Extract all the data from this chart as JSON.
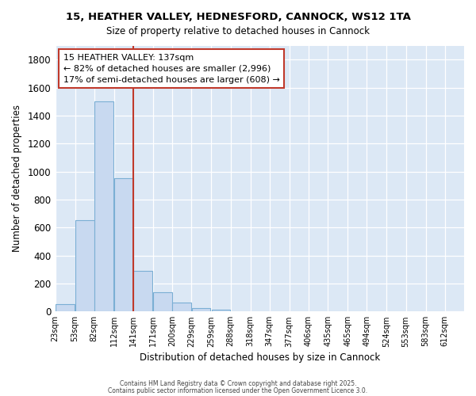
{
  "title_line1": "15, HEATHER VALLEY, HEDNESFORD, CANNOCK, WS12 1TA",
  "title_line2": "Size of property relative to detached houses in Cannock",
  "xlabel": "Distribution of detached houses by size in Cannock",
  "ylabel": "Number of detached properties",
  "bar_left_edges": [
    23,
    53,
    82,
    112,
    141,
    171,
    200,
    229,
    259,
    288,
    318,
    347,
    377,
    406,
    435,
    465,
    494,
    524,
    553,
    583
  ],
  "bar_widths": [
    29,
    29,
    29,
    29,
    29,
    29,
    29,
    29,
    29,
    29,
    29,
    29,
    29,
    29,
    29,
    29,
    29,
    29,
    29,
    29
  ],
  "bar_heights": [
    50,
    650,
    1500,
    950,
    290,
    135,
    65,
    25,
    15,
    0,
    0,
    0,
    0,
    0,
    0,
    0,
    0,
    0,
    0,
    0
  ],
  "bar_color": "#c8d9f0",
  "bar_edge_color": "#7bafd4",
  "tick_labels": [
    "23sqm",
    "53sqm",
    "82sqm",
    "112sqm",
    "141sqm",
    "171sqm",
    "200sqm",
    "229sqm",
    "259sqm",
    "288sqm",
    "318sqm",
    "347sqm",
    "377sqm",
    "406sqm",
    "435sqm",
    "465sqm",
    "494sqm",
    "524sqm",
    "553sqm",
    "583sqm",
    "612sqm"
  ],
  "tick_positions": [
    23,
    53,
    82,
    112,
    141,
    171,
    200,
    229,
    259,
    288,
    318,
    347,
    377,
    406,
    435,
    465,
    494,
    524,
    553,
    583,
    612
  ],
  "vline_x": 141,
  "vline_color": "#c0392b",
  "annotation_text": "15 HEATHER VALLEY: 137sqm\n← 82% of detached houses are smaller (2,996)\n17% of semi-detached houses are larger (608) →",
  "annotation_box_color": "#ffffff",
  "annotation_box_edge": "#c0392b",
  "ylim": [
    0,
    1900
  ],
  "xlim": [
    23,
    641
  ],
  "yticks": [
    0,
    200,
    400,
    600,
    800,
    1000,
    1200,
    1400,
    1600,
    1800
  ],
  "background_color": "#dce8f5",
  "fig_background_color": "#ffffff",
  "grid_color": "#ffffff",
  "footer_line1": "Contains HM Land Registry data © Crown copyright and database right 2025.",
  "footer_line2": "Contains public sector information licensed under the Open Government Licence 3.0."
}
